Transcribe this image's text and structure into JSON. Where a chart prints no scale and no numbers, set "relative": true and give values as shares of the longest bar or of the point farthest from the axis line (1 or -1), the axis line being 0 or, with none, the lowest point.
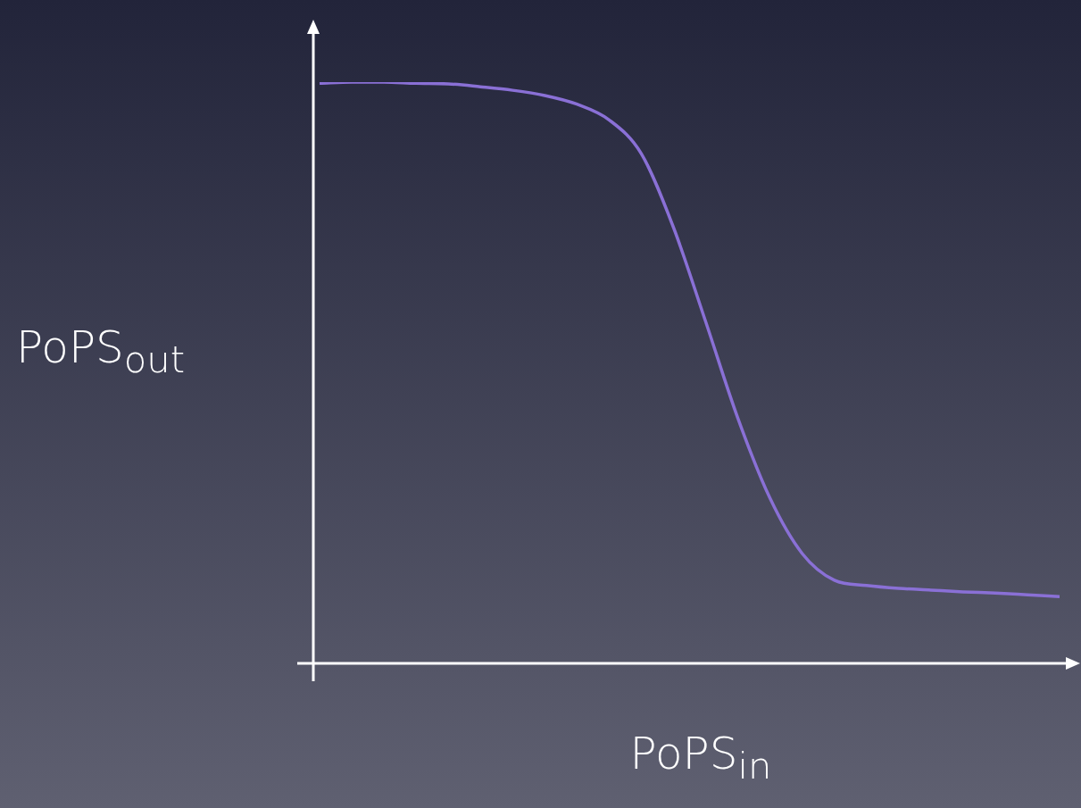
{
  "chart_data": {
    "type": "line",
    "relative": true,
    "xlabel": "PoPS$_{in}$",
    "ylabel": "PoPS$_{out}$",
    "categories": [
      null,
      null,
      null,
      null,
      null,
      null,
      null,
      null,
      null,
      null,
      null,
      null,
      null,
      null,
      null,
      null,
      null,
      null,
      null,
      null,
      null,
      null,
      null,
      null
    ],
    "series": [
      {
        "color": "#8a70d6",
        "values": [
          0.998,
          1,
          1,
          0.998,
          0.997,
          0.992,
          0.986,
          0.977,
          0.962,
          0.935,
          0.877,
          0.75,
          0.588,
          0.422,
          0.284,
          0.189,
          0.143,
          0.134,
          0.129,
          0.126,
          0.123,
          0.121,
          0.118,
          0.115
        ]
      }
    ]
  }
}
